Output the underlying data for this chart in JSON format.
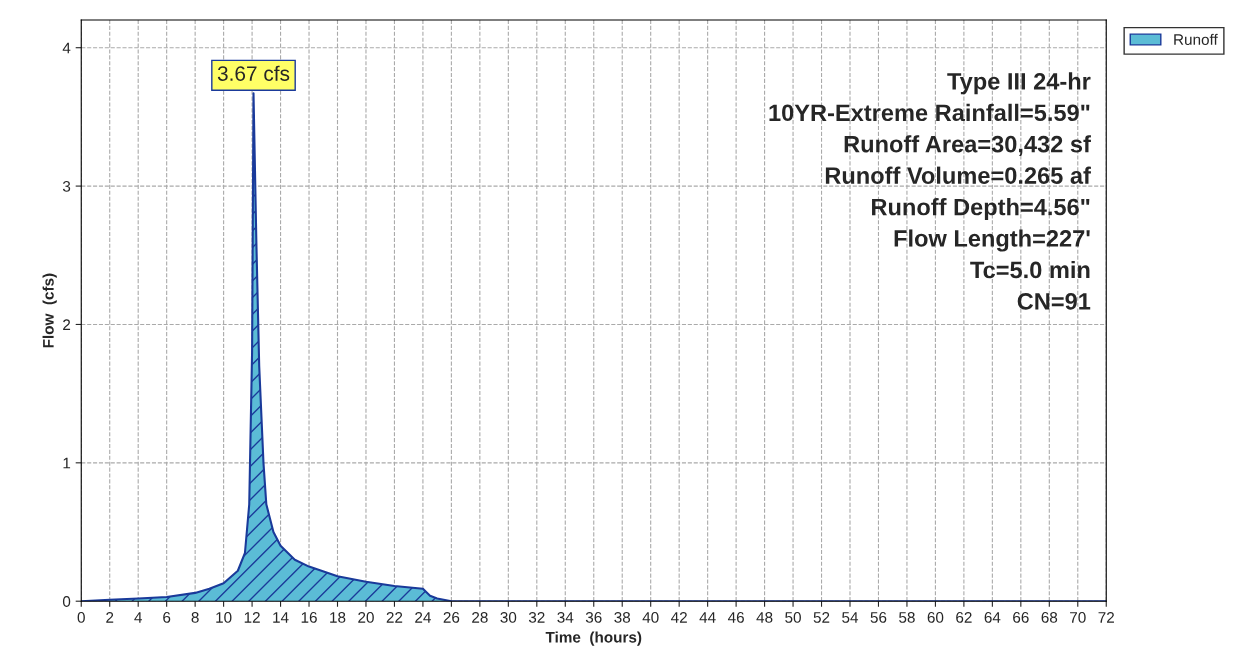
{
  "chart_data": {
    "type": "area",
    "xlabel": "Time  (hours)",
    "ylabel": "Flow  (cfs)",
    "x": [
      0,
      2,
      4,
      6,
      8,
      9,
      10,
      11,
      11.5,
      11.8,
      12,
      12.1,
      12.3,
      12.5,
      12.8,
      13,
      13.5,
      14,
      15,
      16,
      18,
      20,
      22,
      24,
      24.5,
      25,
      26,
      30,
      40,
      50,
      60,
      72
    ],
    "series": [
      {
        "name": "Runoff",
        "color": "#5bbcd6",
        "values": [
          0,
          0.01,
          0.02,
          0.03,
          0.06,
          0.09,
          0.13,
          0.22,
          0.35,
          0.7,
          1.8,
          3.67,
          2.6,
          1.7,
          1.0,
          0.7,
          0.5,
          0.4,
          0.3,
          0.25,
          0.18,
          0.14,
          0.11,
          0.09,
          0.04,
          0.02,
          0,
          0,
          0,
          0,
          0,
          0
        ]
      }
    ],
    "xlim": [
      0,
      72
    ],
    "xticks": [
      0,
      2,
      4,
      6,
      8,
      10,
      12,
      14,
      16,
      18,
      20,
      22,
      24,
      26,
      28,
      30,
      32,
      34,
      36,
      38,
      40,
      42,
      44,
      46,
      48,
      50,
      52,
      54,
      56,
      58,
      60,
      62,
      64,
      66,
      68,
      70,
      72
    ],
    "ylim": [
      0,
      4.2
    ],
    "yticks": [
      0,
      1,
      2,
      3,
      4
    ],
    "annotations": [
      {
        "text": "3.67 cfs",
        "x": 12.1,
        "y": 3.67
      },
      "Type III 24-hr\n10YR-Extreme Rainfall=5.59\"\nRunoff Area=30,432 sf\nRunoff Volume=0.265 af\nRunoff Depth=4.56\"\nFlow Length=227'\nTc=5.0 min\nCN=91"
    ],
    "grid": true,
    "legend": "top right",
    "marker": "none",
    "line_style": "solid"
  }
}
